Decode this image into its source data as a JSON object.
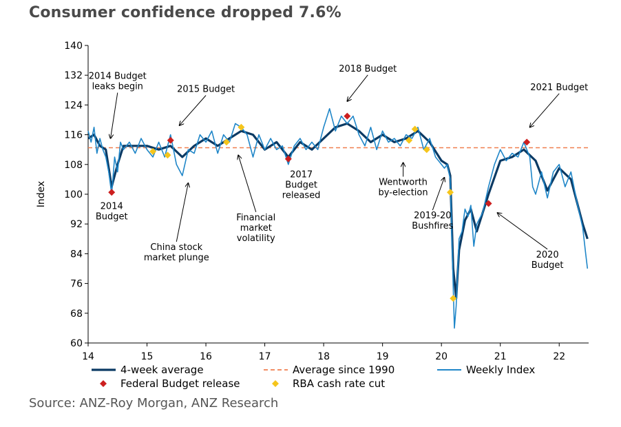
{
  "title": "Consumer confidence dropped 7.6%",
  "source": "Source: ANZ-Roy Morgan, ANZ Research",
  "colors": {
    "avg4": "#0b3a64",
    "weekly": "#1f86c8",
    "longavg": "#f07f4f",
    "budget": "#cc1f1f",
    "cut": "#f5c51c"
  },
  "chart_data": {
    "type": "line",
    "title": "Consumer confidence dropped 7.6%",
    "xlabel": "",
    "ylabel": "Index",
    "xlim": [
      14,
      22.5
    ],
    "ylim": [
      60,
      140
    ],
    "x_ticks": [
      "14",
      "15",
      "16",
      "17",
      "18",
      "19",
      "20",
      "21",
      "22"
    ],
    "y_ticks": [
      "60",
      "68",
      "76",
      "84",
      "92",
      "100",
      "108",
      "116",
      "124",
      "132",
      "140"
    ],
    "long_run_average": 112.5,
    "series": [
      {
        "name": "4-week average",
        "x": [
          14.0,
          14.1,
          14.2,
          14.3,
          14.4,
          14.5,
          14.6,
          14.7,
          15.0,
          15.2,
          15.4,
          15.6,
          15.8,
          16.0,
          16.2,
          16.4,
          16.6,
          16.8,
          17.0,
          17.2,
          17.4,
          17.6,
          17.8,
          18.0,
          18.2,
          18.4,
          18.6,
          18.8,
          19.0,
          19.2,
          19.4,
          19.6,
          19.8,
          20.0,
          20.1,
          20.15,
          20.2,
          20.25,
          20.3,
          20.4,
          20.5,
          20.6,
          20.8,
          21.0,
          21.2,
          21.4,
          21.6,
          21.8,
          22.0,
          22.2,
          22.4,
          22.48
        ],
        "y": [
          115,
          116,
          113,
          112,
          102,
          108,
          113,
          113,
          113,
          112,
          113,
          110,
          113,
          115,
          113,
          115,
          117,
          116,
          112,
          114,
          110,
          114,
          112,
          115,
          118,
          119,
          117,
          114,
          116,
          114,
          115,
          117,
          114,
          109,
          108,
          105,
          80,
          72,
          85,
          93,
          96,
          90,
          100,
          109,
          110,
          112,
          109,
          101,
          107,
          104,
          92,
          88
        ]
      },
      {
        "name": "Weekly Index",
        "x": [
          14.0,
          14.05,
          14.1,
          14.15,
          14.2,
          14.25,
          14.3,
          14.35,
          14.4,
          14.45,
          14.5,
          14.55,
          14.6,
          14.7,
          14.8,
          14.9,
          15.0,
          15.1,
          15.2,
          15.3,
          15.4,
          15.5,
          15.6,
          15.7,
          15.8,
          15.9,
          16.0,
          16.1,
          16.2,
          16.3,
          16.4,
          16.5,
          16.6,
          16.7,
          16.8,
          16.9,
          17.0,
          17.1,
          17.2,
          17.3,
          17.4,
          17.5,
          17.6,
          17.7,
          17.8,
          17.9,
          18.0,
          18.1,
          18.2,
          18.3,
          18.4,
          18.5,
          18.6,
          18.7,
          18.8,
          18.9,
          19.0,
          19.1,
          19.2,
          19.3,
          19.4,
          19.5,
          19.6,
          19.7,
          19.8,
          19.9,
          20.0,
          20.05,
          20.1,
          20.15,
          20.2,
          20.22,
          20.25,
          20.3,
          20.35,
          20.4,
          20.45,
          20.5,
          20.55,
          20.6,
          20.7,
          20.8,
          20.9,
          21.0,
          21.1,
          21.2,
          21.3,
          21.4,
          21.5,
          21.55,
          21.6,
          21.7,
          21.8,
          21.9,
          22.0,
          22.1,
          22.2,
          22.3,
          22.4,
          22.45,
          22.48
        ],
        "y": [
          117,
          114,
          118,
          111,
          115,
          112,
          110,
          106,
          100,
          110,
          106,
          114,
          112,
          114,
          111,
          115,
          112,
          110,
          114,
          110,
          116,
          108,
          105,
          112,
          111,
          116,
          114,
          117,
          111,
          116,
          114,
          119,
          118,
          116,
          110,
          116,
          112,
          115,
          112,
          113,
          108,
          113,
          115,
          112,
          114,
          112,
          118,
          123,
          117,
          121,
          119,
          121,
          116,
          113,
          118,
          112,
          117,
          114,
          115,
          113,
          116,
          115,
          118,
          112,
          115,
          110,
          108,
          107,
          108,
          104,
          75,
          64,
          70,
          88,
          90,
          96,
          94,
          97,
          86,
          92,
          95,
          102,
          108,
          112,
          109,
          111,
          110,
          114,
          110,
          102,
          100,
          106,
          99,
          106,
          108,
          102,
          106,
          98,
          91,
          84,
          80
        ]
      }
    ],
    "budget_releases": [
      {
        "x": 14.4,
        "y": 100.5
      },
      {
        "x": 15.4,
        "y": 114.5
      },
      {
        "x": 17.4,
        "y": 109.5
      },
      {
        "x": 18.4,
        "y": 121
      },
      {
        "x": 20.8,
        "y": 97.5
      },
      {
        "x": 21.45,
        "y": 114
      }
    ],
    "rba_cuts": [
      {
        "x": 15.1,
        "y": 111.5
      },
      {
        "x": 15.35,
        "y": 110.5
      },
      {
        "x": 16.35,
        "y": 114
      },
      {
        "x": 16.6,
        "y": 118
      },
      {
        "x": 19.45,
        "y": 114.5
      },
      {
        "x": 19.55,
        "y": 117.5
      },
      {
        "x": 19.75,
        "y": 112
      },
      {
        "x": 20.15,
        "y": 100.5
      },
      {
        "x": 20.2,
        "y": 72
      }
    ],
    "annotations": [
      {
        "lines": [
          "2014 Budget",
          "leaks begin"
        ],
        "tx": 14.5,
        "ty": 131,
        "ax": 14.38,
        "ay": 115
      },
      {
        "lines": [
          "2015 Budget"
        ],
        "tx": 16.0,
        "ty": 127.5,
        "ax": 15.55,
        "ay": 118.5
      },
      {
        "lines": [
          "2018 Budget"
        ],
        "tx": 18.75,
        "ty": 133,
        "ax": 18.4,
        "ay": 125
      },
      {
        "lines": [
          "2021 Budget"
        ],
        "tx": 22.0,
        "ty": 128,
        "ax": 21.5,
        "ay": 118
      },
      {
        "lines": [
          "2014",
          "Budget"
        ],
        "tx": 14.4,
        "ty": 96,
        "ax": null,
        "ay": null
      },
      {
        "lines": [
          "2017",
          "Budget",
          "released"
        ],
        "tx": 17.62,
        "ty": 104.5,
        "ax": null,
        "ay": null
      },
      {
        "lines": [
          "Wentworth",
          "by-election"
        ],
        "tx": 19.35,
        "ty": 102.5,
        "ax": 19.35,
        "ay": 108.5
      },
      {
        "lines": [
          "2019-20",
          "Bushfires"
        ],
        "tx": 19.85,
        "ty": 93.5,
        "ax": 20.05,
        "ay": 104.5
      },
      {
        "lines": [
          "China stock",
          "market plunge"
        ],
        "tx": 15.5,
        "ty": 85,
        "ax": 15.7,
        "ay": 103
      },
      {
        "lines": [
          "Financial",
          "market",
          "volatility"
        ],
        "tx": 16.85,
        "ty": 93,
        "ax": 16.55,
        "ay": 110.5
      },
      {
        "lines": [
          "2020",
          "Budget"
        ],
        "tx": 21.8,
        "ty": 83,
        "ax": 20.95,
        "ay": 95
      }
    ],
    "legend": [
      {
        "label": "4-week average",
        "kind": "thick-line"
      },
      {
        "label": "Average since 1990",
        "kind": "dashed-line"
      },
      {
        "label": "Weekly Index",
        "kind": "thin-line"
      },
      {
        "label": "Federal Budget release",
        "kind": "diamond-red"
      },
      {
        "label": "RBA cash rate cut",
        "kind": "diamond-yellow"
      }
    ],
    "legend_position": "bottom",
    "grid": false
  }
}
